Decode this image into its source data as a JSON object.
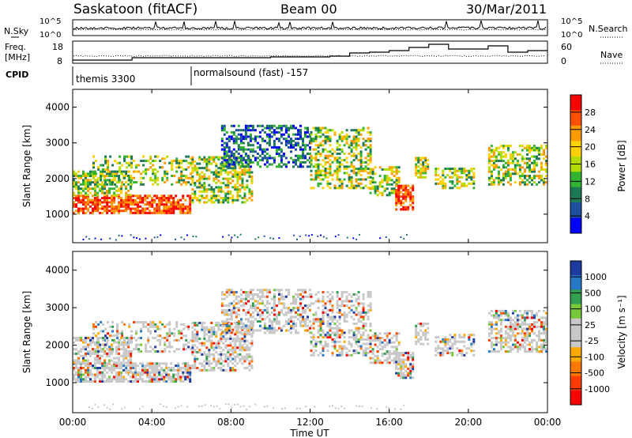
{
  "header": {
    "title": "Saskatoon (fitACF)",
    "beam": "Beam 00",
    "date": "30/Mar/2011"
  },
  "noise_panel": {
    "left_label": "N.Sky",
    "left_ticks": [
      "10^5",
      "10^0"
    ],
    "right_ticks": [
      "10^5",
      "10^0"
    ],
    "right_label": "N.Search"
  },
  "freq_panel": {
    "left_label_line1": "Freq.",
    "left_label_line2": "[MHz]",
    "left_ticks": [
      "18",
      "8"
    ],
    "right_ticks": [
      "60",
      "0"
    ],
    "right_label": "Nave"
  },
  "cpid": {
    "label": "CPID",
    "entries": [
      "themis 3300",
      "normalsound (fast) -157"
    ]
  },
  "x_axis": {
    "ticks": [
      "00:00",
      "04:00",
      "08:00",
      "12:00",
      "16:00",
      "20:00",
      "00:00"
    ],
    "label": "Time UT"
  },
  "chart_data": [
    {
      "type": "heatmap",
      "quantity": "Power",
      "ylabel": "Slant Range [km]",
      "yticks": [
        "1000",
        "2000",
        "3000",
        "4000"
      ],
      "ylim": [
        200,
        4500
      ],
      "colorbar_label": "Power [dB]",
      "colorbar_ticks": [
        "28",
        "24",
        "20",
        "16",
        "12",
        "8",
        "4"
      ],
      "colorbar_colors": [
        "#ff0000",
        "#ff5000",
        "#ff9a00",
        "#ffd200",
        "#b4dc00",
        "#32b432",
        "#1e7a55",
        "#1e50a0",
        "#0000ff"
      ]
    },
    {
      "type": "heatmap",
      "quantity": "Velocity",
      "ylabel": "Slant Range [km]",
      "yticks": [
        "1000",
        "2000",
        "3000",
        "4000"
      ],
      "ylim": [
        200,
        4500
      ],
      "colorbar_label": "Velocity [m s⁻¹]",
      "colorbar_ticks": [
        "1000",
        "500",
        "100",
        "25",
        "-25",
        "-100",
        "-500",
        "-1000"
      ],
      "colorbar_colors": [
        "#1e3ca0",
        "#2878c8",
        "#32a050",
        "#78c83c",
        "#c8c8c8",
        "#c8c8c8",
        "#ffaa00",
        "#ff7800",
        "#ff3c00",
        "#ff0000"
      ]
    }
  ]
}
